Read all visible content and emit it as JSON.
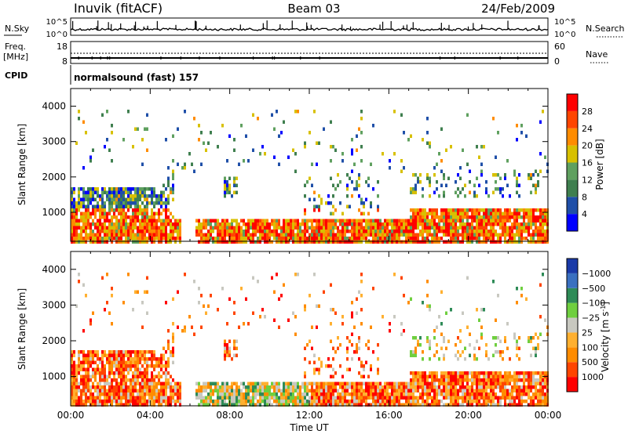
{
  "header": {
    "station": "Inuvik (fitACF)",
    "beam": "Beam 03",
    "date": "24/Feb/2009"
  },
  "panels": {
    "nsky": {
      "label": "N.Sky",
      "left_ticks": [
        "10^5",
        "10^0"
      ],
      "right_ticks": [
        "10^5",
        "10^0"
      ],
      "right_label": "N.Search"
    },
    "freq": {
      "label_top": "Freq.",
      "label_bottom": "[MHz]",
      "left_ticks": [
        "18",
        "8"
      ],
      "right_ticks": [
        "60",
        "0"
      ],
      "right_label": "Nave"
    },
    "cpid": {
      "label": "CPID",
      "text": "normalsound (fast) 157"
    }
  },
  "colors": {
    "power": [
      "#0000ff",
      "#1f4fa8",
      "#3f7f4f",
      "#5fa05f",
      "#d8c000",
      "#ff8c00",
      "#ff4500",
      "#ff0000"
    ],
    "velocity": [
      "#ff0000",
      "#ff4500",
      "#ff8c00",
      "#ffb030",
      "#c8c8c0",
      "#6fcf3f",
      "#2e8b57",
      "#3a70c0",
      "#1a3aa8"
    ]
  },
  "chart_data": [
    {
      "type": "heatmap",
      "quantity": "Power",
      "ylabel": "Slant Range [km]",
      "xlabel": "Time UT",
      "x_ticks": [
        "00:00",
        "04:00",
        "08:00",
        "12:00",
        "16:00",
        "20:00",
        "00:00"
      ],
      "x_range_hours": [
        0,
        24
      ],
      "y_ticks": [
        1000,
        2000,
        3000,
        4000
      ],
      "y_range_km": [
        180,
        4500
      ],
      "colorbar_label": "Power [dB]",
      "colorbar_ticks": [
        "4",
        "8",
        "12",
        "16",
        "20",
        "24",
        "28"
      ]
    },
    {
      "type": "heatmap",
      "quantity": "Velocity",
      "ylabel": "Slant Range [km]",
      "xlabel": "Time UT",
      "x_ticks": [
        "00:00",
        "04:00",
        "08:00",
        "12:00",
        "16:00",
        "20:00",
        "00:00"
      ],
      "x_range_hours": [
        0,
        24
      ],
      "y_ticks": [
        1000,
        2000,
        3000,
        4000
      ],
      "y_range_km": [
        180,
        4500
      ],
      "colorbar_label": "Velocity [m s",
      "colorbar_label_exp": "-1",
      "colorbar_ticks": [
        "1000",
        "500",
        "100",
        "25",
        "−25",
        "−100",
        "−500",
        "−1000"
      ]
    }
  ]
}
